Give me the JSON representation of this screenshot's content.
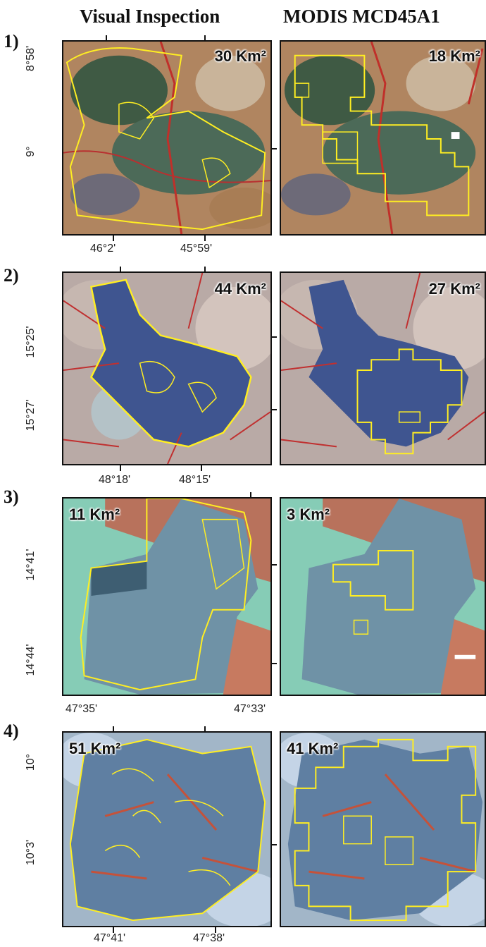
{
  "columns": {
    "visual": "Visual Inspection",
    "modis": "MODIS MCD45A1"
  },
  "rows": [
    {
      "label": "1)",
      "visual_area": "30 Km²",
      "modis_area": "18 Km²",
      "lat_ticks": [
        "8°58'",
        "9°"
      ],
      "lon_ticks": [
        "46°2'",
        "45°59'"
      ],
      "palette": "green-red"
    },
    {
      "label": "2)",
      "visual_area": "44 Km²",
      "modis_area": "27 Km²",
      "lat_ticks": [
        "15°25'",
        "15°27'"
      ],
      "lon_ticks": [
        "48°18'",
        "48°15'"
      ],
      "palette": "blue-grey"
    },
    {
      "label": "3)",
      "visual_area": "11 Km²",
      "modis_area": "3 Km²",
      "lat_ticks": [
        "14°41'",
        "14°44'"
      ],
      "lon_ticks": [
        "47°35'",
        "47°33'"
      ],
      "palette": "cyan"
    },
    {
      "label": "4)",
      "visual_area": "51 Km²",
      "modis_area": "41 Km²",
      "lat_ticks": [
        "10°",
        "10°3'"
      ],
      "lon_ticks": [
        "47°41'",
        "47°38'"
      ],
      "palette": "light-blue"
    }
  ],
  "colors": {
    "outline": "#ffee22",
    "frame": "#111111"
  }
}
